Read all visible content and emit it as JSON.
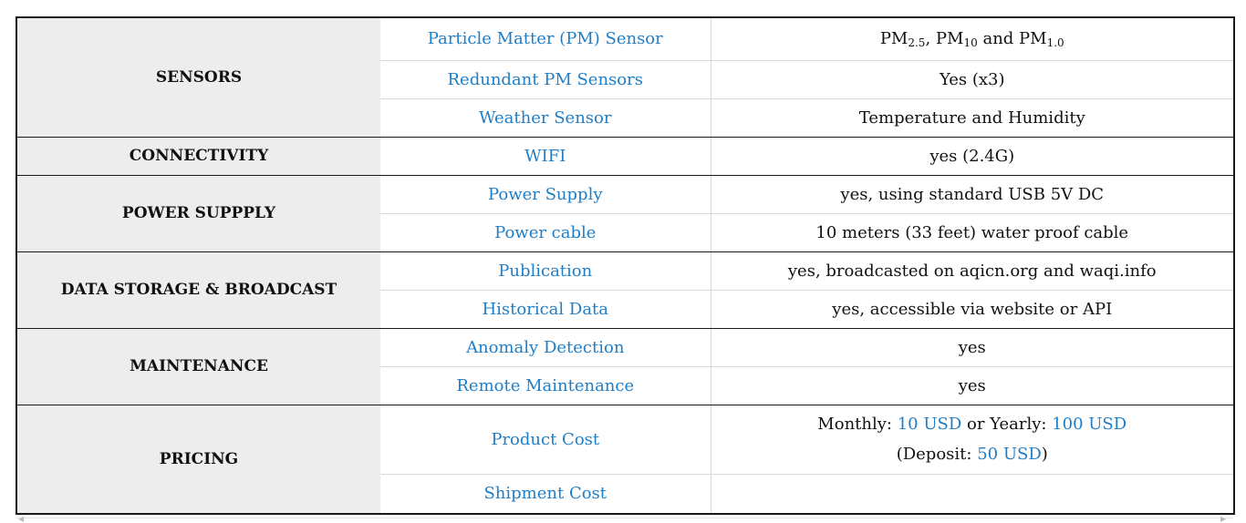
{
  "groups": {
    "sensors": {
      "label": "SENSORS",
      "rows": [
        {
          "feature": "Particle Matter (PM) Sensor",
          "value": {
            "pm": "PM",
            "s1": "2.5",
            "sep1": ", PM",
            "s2": "10",
            "sep2": " and PM",
            "s3": "1.0"
          }
        },
        {
          "feature": "Redundant PM Sensors",
          "value": "Yes (x3)"
        },
        {
          "feature": "Weather Sensor",
          "value": "Temperature and Humidity"
        }
      ]
    },
    "connectivity": {
      "label": "CONNECTIVITY",
      "rows": [
        {
          "feature": "WIFI",
          "value": "yes (2.4G)"
        }
      ]
    },
    "power": {
      "label": "POWER SUPPPLY",
      "rows": [
        {
          "feature": "Power Supply",
          "value": "yes, using standard USB 5V DC"
        },
        {
          "feature": "Power cable",
          "value": "10 meters (33 feet) water proof cable"
        }
      ]
    },
    "data": {
      "label": "DATA STORAGE & BROADCAST",
      "rows": [
        {
          "feature": "Publication",
          "value": "yes, broadcasted on aqicn.org and waqi.info"
        },
        {
          "feature": "Historical Data",
          "value": "yes, accessible via website or API"
        }
      ]
    },
    "maintenance": {
      "label": "MAINTENANCE",
      "rows": [
        {
          "feature": "Anomaly Detection",
          "value": "yes"
        },
        {
          "feature": "Remote Maintenance",
          "value": "yes"
        }
      ]
    },
    "pricing": {
      "label": "PRICING",
      "rows": [
        {
          "feature": "Product Cost",
          "value": {
            "monthly_label": "Monthly: ",
            "monthly_price": "10 USD",
            "yearly_label": " or Yearly: ",
            "yearly_price": "100 USD",
            "deposit_open": "(Deposit: ",
            "deposit_price": "50 USD",
            "deposit_close": ")"
          }
        },
        {
          "feature": "Shipment Cost",
          "value": ""
        }
      ]
    }
  },
  "colors": {
    "accent": "#1e7ec8",
    "category_bg": "#ededed",
    "border": "#1a1a1a",
    "inner_border": "#d9d9d9"
  }
}
